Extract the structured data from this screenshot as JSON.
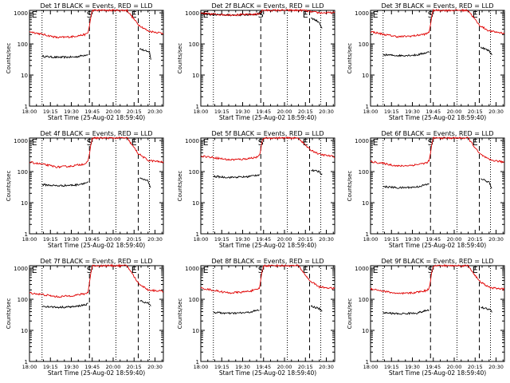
{
  "figure": {
    "xlabel": "Start Time (25-Aug-02 18:59:40)",
    "ylabel": "Counts/sec",
    "colors": {
      "events": "#000000",
      "lld": "#e00000",
      "axes": "#000000",
      "background": "#ffffff"
    },
    "x_ticks": [
      "18:00",
      "19:15",
      "19:30",
      "19:45",
      "20:00",
      "20:15",
      "20:30"
    ],
    "y_ticks": [
      "1",
      "10",
      "100",
      "1000"
    ],
    "markers": [
      "E",
      "S",
      "E"
    ]
  },
  "chart_data": [
    {
      "type": "line",
      "title": "Det 1f BLACK = Events, RED = LLD",
      "y_scale": "log",
      "ylim": [
        1,
        1200
      ],
      "xlim_minutes": [
        0,
        96
      ],
      "dotted_lines_minutes": [
        9,
        62,
        86
      ],
      "dashed_lines_minutes": [
        43,
        78
      ],
      "series": [
        {
          "name": "BLACK = Events",
          "segments": [
            {
              "x": [
                9,
                20,
                33,
                42
              ],
              "y": [
                40,
                37,
                38,
                46
              ]
            },
            {
              "x": [
                79,
                85,
                86,
                87
              ],
              "y": [
                70,
                55,
                60,
                30
              ]
            }
          ]
        },
        {
          "name": "RED = LLD",
          "segments": [
            {
              "x": [
                0,
                10,
                20,
                30,
                40,
                42,
                44,
                45,
                58,
                66,
                70,
                78,
                85,
                96
              ],
              "y": [
                250,
                200,
                160,
                170,
                200,
                230,
                700,
                1200,
                1200,
                1200,
                1200,
                420,
                260,
                220
              ]
            }
          ]
        }
      ]
    },
    {
      "type": "line",
      "title": "Det 2f BLACK = Events, RED = LLD",
      "y_scale": "log",
      "ylim": [
        1,
        1200
      ],
      "xlim_minutes": [
        0,
        96
      ],
      "dotted_lines_minutes": [
        9,
        62,
        86
      ],
      "dashed_lines_minutes": [
        43,
        78
      ],
      "series": [
        {
          "name": "BLACK = Events",
          "segments": [
            {
              "x": [
                0,
                10,
                20,
                30,
                40,
                42,
                44
              ],
              "y": [
                900,
                880,
                850,
                860,
                900,
                950,
                1000
              ]
            },
            {
              "x": [
                79,
                85,
                87
              ],
              "y": [
                700,
                500,
                300
              ]
            }
          ]
        },
        {
          "name": "RED = LLD",
          "segments": [
            {
              "x": [
                0,
                10,
                20,
                30,
                40,
                42,
                44,
                46,
                58,
                70,
                74,
                78,
                85,
                96
              ],
              "y": [
                950,
                900,
                860,
                870,
                900,
                950,
                1200,
                1200,
                1200,
                1200,
                1200,
                1100,
                1000,
                1000
              ]
            }
          ]
        }
      ]
    },
    {
      "type": "line",
      "title": "Det 3f BLACK = Events, RED = LLD",
      "y_scale": "log",
      "ylim": [
        1,
        1200
      ],
      "xlim_minutes": [
        0,
        96
      ],
      "dotted_lines_minutes": [
        9,
        62,
        86
      ],
      "dashed_lines_minutes": [
        43,
        78
      ],
      "series": [
        {
          "name": "BLACK = Events",
          "segments": [
            {
              "x": [
                9,
                20,
                33,
                42
              ],
              "y": [
                45,
                42,
                44,
                55
              ]
            },
            {
              "x": [
                79,
                85,
                87
              ],
              "y": [
                80,
                60,
                45
              ]
            }
          ]
        },
        {
          "name": "RED = LLD",
          "segments": [
            {
              "x": [
                0,
                10,
                20,
                30,
                40,
                42,
                44,
                45,
                58,
                70,
                78,
                85,
                96
              ],
              "y": [
                250,
                200,
                170,
                180,
                210,
                240,
                800,
                1200,
                1200,
                1200,
                400,
                260,
                220
              ]
            }
          ]
        }
      ]
    },
    {
      "type": "line",
      "title": "Det 4f BLACK = Events, RED = LLD",
      "y_scale": "log",
      "ylim": [
        1,
        1200
      ],
      "xlim_minutes": [
        0,
        96
      ],
      "dotted_lines_minutes": [
        9,
        62,
        86
      ],
      "dashed_lines_minutes": [
        43,
        78
      ],
      "series": [
        {
          "name": "BLACK = Events",
          "segments": [
            {
              "x": [
                9,
                20,
                33,
                42
              ],
              "y": [
                38,
                35,
                37,
                45
              ]
            },
            {
              "x": [
                79,
                85,
                87
              ],
              "y": [
                60,
                50,
                30
              ]
            }
          ]
        },
        {
          "name": "RED = LLD",
          "segments": [
            {
              "x": [
                0,
                10,
                20,
                30,
                40,
                42,
                44,
                45,
                58,
                70,
                78,
                85,
                96
              ],
              "y": [
                200,
                170,
                140,
                150,
                180,
                210,
                700,
                1200,
                1200,
                1200,
                380,
                230,
                200
              ]
            }
          ]
        }
      ]
    },
    {
      "type": "line",
      "title": "Det 5f BLACK = Events, RED = LLD",
      "y_scale": "log",
      "ylim": [
        1,
        1200
      ],
      "xlim_minutes": [
        0,
        96
      ],
      "dotted_lines_minutes": [
        9,
        62,
        86
      ],
      "dashed_lines_minutes": [
        43,
        78
      ],
      "series": [
        {
          "name": "BLACK = Events",
          "segments": [
            {
              "x": [
                9,
                20,
                33,
                42
              ],
              "y": [
                70,
                65,
                68,
                80
              ]
            },
            {
              "x": [
                79,
                85,
                87
              ],
              "y": [
                110,
                100,
                80
              ]
            }
          ]
        },
        {
          "name": "RED = LLD",
          "segments": [
            {
              "x": [
                0,
                10,
                20,
                30,
                40,
                42,
                44,
                45,
                58,
                70,
                78,
                85,
                96
              ],
              "y": [
                320,
                280,
                240,
                250,
                290,
                320,
                900,
                1200,
                1200,
                1200,
                520,
                360,
                300
              ]
            }
          ]
        }
      ]
    },
    {
      "type": "line",
      "title": "Det 6f BLACK = Events, RED = LLD",
      "y_scale": "log",
      "ylim": [
        1,
        1200
      ],
      "xlim_minutes": [
        0,
        96
      ],
      "dotted_lines_minutes": [
        9,
        62,
        86
      ],
      "dashed_lines_minutes": [
        43,
        78
      ],
      "series": [
        {
          "name": "BLACK = Events",
          "segments": [
            {
              "x": [
                9,
                20,
                33,
                42
              ],
              "y": [
                33,
                30,
                32,
                40
              ]
            },
            {
              "x": [
                79,
                85,
                87
              ],
              "y": [
                60,
                45,
                28
              ]
            }
          ]
        },
        {
          "name": "RED = LLD",
          "segments": [
            {
              "x": [
                0,
                10,
                20,
                30,
                40,
                42,
                44,
                45,
                58,
                70,
                78,
                85,
                96
              ],
              "y": [
                210,
                180,
                150,
                160,
                190,
                220,
                750,
                1200,
                1200,
                1200,
                380,
                240,
                200
              ]
            }
          ]
        }
      ]
    },
    {
      "type": "line",
      "title": "Det 7f BLACK = Events, RED = LLD",
      "y_scale": "log",
      "ylim": [
        1,
        1200
      ],
      "xlim_minutes": [
        0,
        96
      ],
      "dotted_lines_minutes": [
        9,
        62,
        86
      ],
      "dashed_lines_minutes": [
        43,
        78
      ],
      "series": [
        {
          "name": "BLACK = Events",
          "segments": [
            {
              "x": [
                9,
                20,
                33,
                42
              ],
              "y": [
                60,
                55,
                58,
                70
              ]
            },
            {
              "x": [
                79,
                85,
                87
              ],
              "y": [
                90,
                75,
                60
              ]
            }
          ]
        },
        {
          "name": "RED = LLD",
          "segments": [
            {
              "x": [
                0,
                10,
                20,
                30,
                40,
                42,
                44,
                45,
                58,
                70,
                78,
                85,
                96
              ],
              "y": [
                160,
                140,
                120,
                130,
                150,
                170,
                700,
                1200,
                1200,
                1200,
                330,
                200,
                180
              ]
            }
          ]
        }
      ]
    },
    {
      "type": "line",
      "title": "Det 8f BLACK = Events, RED = LLD",
      "y_scale": "log",
      "ylim": [
        1,
        1200
      ],
      "xlim_minutes": [
        0,
        96
      ],
      "dotted_lines_minutes": [
        9,
        62,
        86
      ],
      "dashed_lines_minutes": [
        43,
        78
      ],
      "series": [
        {
          "name": "BLACK = Events",
          "segments": [
            {
              "x": [
                9,
                20,
                33,
                42
              ],
              "y": [
                38,
                35,
                37,
                45
              ]
            },
            {
              "x": [
                79,
                85,
                87
              ],
              "y": [
                60,
                50,
                40
              ]
            }
          ]
        },
        {
          "name": "RED = LLD",
          "segments": [
            {
              "x": [
                0,
                10,
                20,
                30,
                40,
                42,
                44,
                45,
                58,
                70,
                78,
                85,
                96
              ],
              "y": [
                230,
                190,
                160,
                170,
                200,
                230,
                800,
                1200,
                1200,
                1200,
                400,
                250,
                220
              ]
            }
          ]
        }
      ]
    },
    {
      "type": "line",
      "title": "Det 9f BLACK = Events, RED = LLD",
      "y_scale": "log",
      "ylim": [
        1,
        1200
      ],
      "xlim_minutes": [
        0,
        96
      ],
      "dotted_lines_minutes": [
        9,
        62,
        86
      ],
      "dashed_lines_minutes": [
        43,
        78
      ],
      "series": [
        {
          "name": "BLACK = Events",
          "segments": [
            {
              "x": [
                9,
                20,
                33,
                42
              ],
              "y": [
                37,
                34,
                36,
                45
              ]
            },
            {
              "x": [
                79,
                85,
                87
              ],
              "y": [
                55,
                48,
                40
              ]
            }
          ]
        },
        {
          "name": "RED = LLD",
          "segments": [
            {
              "x": [
                0,
                10,
                20,
                30,
                40,
                42,
                44,
                45,
                58,
                70,
                78,
                85,
                96
              ],
              "y": [
                220,
                180,
                150,
                160,
                190,
                220,
                800,
                1200,
                1200,
                1200,
                380,
                240,
                210
              ]
            }
          ]
        }
      ]
    }
  ]
}
